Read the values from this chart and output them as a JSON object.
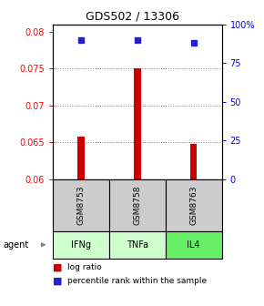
{
  "title": "GDS502 / 13306",
  "samples": [
    "GSM8753",
    "GSM8758",
    "GSM8763"
  ],
  "agents": [
    "IFNg",
    "TNFa",
    "IL4"
  ],
  "bar_bottom": 0.06,
  "bar_values": [
    0.0658,
    0.075,
    0.0648
  ],
  "percentile_values": [
    90,
    90,
    88
  ],
  "ylim": [
    0.06,
    0.081
  ],
  "yticks_left": [
    0.06,
    0.065,
    0.07,
    0.075,
    0.08
  ],
  "yticks_right": [
    0,
    25,
    50,
    75,
    100
  ],
  "yticks_right_labels": [
    "0",
    "25",
    "50",
    "75",
    "100%"
  ],
  "bar_color": "#cc0000",
  "dot_color": "#2222cc",
  "grid_color": "#777777",
  "background_color": "#ffffff",
  "gsm_bg": "#cccccc",
  "agent_colors": [
    "#ccffcc",
    "#ccffcc",
    "#66ee66"
  ],
  "legend_red": "#cc0000",
  "legend_blue": "#2222cc",
  "x_positions": [
    0,
    1,
    2
  ],
  "bar_width": 0.12,
  "dot_size": 5,
  "title_fontsize": 9,
  "tick_fontsize": 7,
  "label_fontsize": 7,
  "gsm_fontsize": 6.5,
  "agent_fontsize": 7,
  "legend_fontsize": 6.5
}
